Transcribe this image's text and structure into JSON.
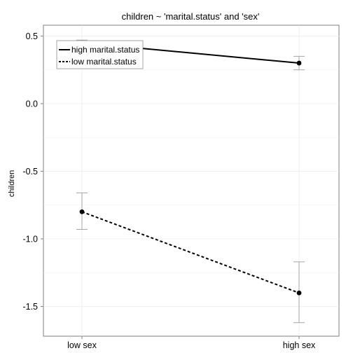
{
  "chart_data": {
    "type": "line",
    "title": "children ~ 'marital.status' and 'sex'",
    "xlabel": "",
    "ylabel": "children",
    "categories": [
      "low sex",
      "high sex"
    ],
    "ylim": [
      -1.72,
      0.58
    ],
    "yticks": [
      0.5,
      0.0,
      -0.5,
      -1.0,
      -1.5
    ],
    "ytick_labels": [
      "0.5",
      "0.0",
      "-0.5",
      "-1.0",
      "-1.5"
    ],
    "grid": true,
    "legend_position": "top-left",
    "series": [
      {
        "name": "high marital.status",
        "linestyle": "solid",
        "values": [
          0.45,
          0.3
        ],
        "error_low": [
          0.43,
          0.25
        ],
        "error_high": [
          0.47,
          0.35
        ]
      },
      {
        "name": "low marital.status",
        "linestyle": "dashed",
        "values": [
          -0.8,
          -1.4
        ],
        "error_low": [
          -0.93,
          -1.62
        ],
        "error_high": [
          -0.66,
          -1.17
        ]
      }
    ]
  }
}
